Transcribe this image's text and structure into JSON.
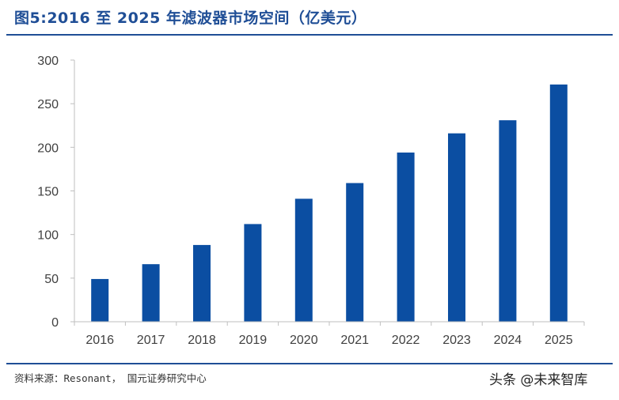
{
  "figure": {
    "title": "图5:2016 至 2025 年滤波器市场空间（亿美元）",
    "source": "资料来源：Resonant， 国元证券研究中心",
    "watermark": "头条 @未来智库"
  },
  "colors": {
    "bar": "#0b4ea2",
    "axis": "#bfbfbf",
    "title": "#1f4e96"
  },
  "chart_data": {
    "type": "bar",
    "categories": [
      "2016",
      "2017",
      "2018",
      "2019",
      "2020",
      "2021",
      "2022",
      "2023",
      "2024",
      "2025"
    ],
    "values": [
      49,
      66,
      88,
      112,
      141,
      159,
      194,
      216,
      231,
      272
    ],
    "ylim": [
      0,
      300
    ],
    "yticks": [
      "0",
      "50",
      "100",
      "150",
      "200",
      "250",
      "300"
    ],
    "grid": false
  }
}
